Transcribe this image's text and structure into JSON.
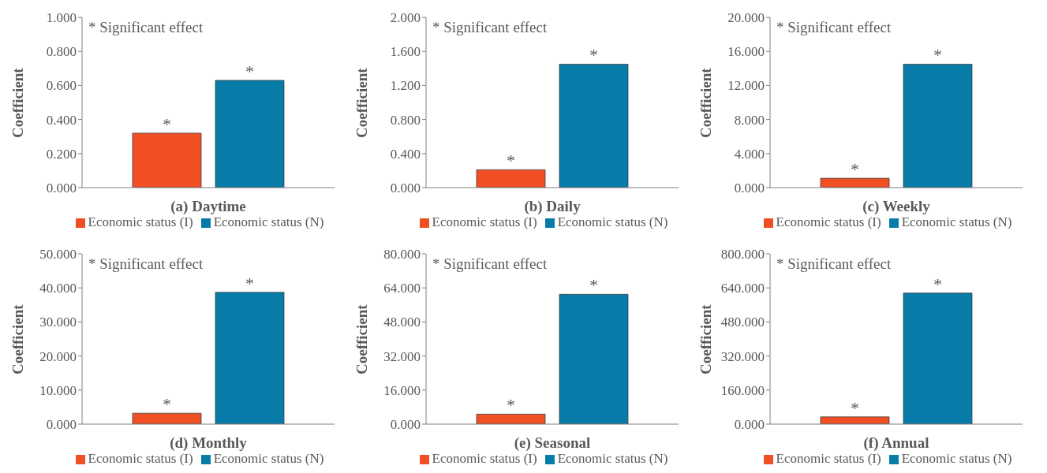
{
  "chart_data": [
    {
      "type": "bar",
      "xlabel": "(a) Daytime",
      "ylabel": "Coefficient",
      "categories": [
        null
      ],
      "legend": "bottom",
      "grid": false,
      "series": [
        {
          "name": "Economic status (I)",
          "color": "#f04e23",
          "values": [
            0.32
          ]
        },
        {
          "name": "Economic status (N)",
          "color": "#077ca8",
          "values": [
            0.63
          ]
        }
      ],
      "ylim": [
        0,
        1
      ],
      "yticks": [
        {
          "value": 0,
          "label": "0.000"
        },
        {
          "value": 0.2,
          "label": "0.200"
        },
        {
          "value": 0.4,
          "label": "0.400"
        },
        {
          "value": 0.6,
          "label": "0.600"
        },
        {
          "value": 0.8,
          "label": "0.800"
        },
        {
          "value": 1,
          "label": "1.000"
        }
      ],
      "annotations": [
        "* Significant effect",
        {
          "text": "*",
          "y": 0.32
        },
        {
          "text": "*",
          "y": 0.63
        }
      ]
    },
    {
      "type": "bar",
      "xlabel": "(b) Daily",
      "ylabel": "Coefficient",
      "categories": [
        null
      ],
      "legend": "bottom",
      "grid": false,
      "series": [
        {
          "name": "Economic status (I)",
          "color": "#f04e23",
          "values": [
            0.21
          ]
        },
        {
          "name": "Economic status (N)",
          "color": "#077ca8",
          "values": [
            1.45
          ]
        }
      ],
      "ylim": [
        0,
        2
      ],
      "yticks": [
        {
          "value": 0,
          "label": "0.000"
        },
        {
          "value": 0.4,
          "label": "0.400"
        },
        {
          "value": 0.8,
          "label": "0.800"
        },
        {
          "value": 1.2,
          "label": "1.200"
        },
        {
          "value": 1.6,
          "label": "1.600"
        },
        {
          "value": 2,
          "label": "2.000"
        }
      ],
      "annotations": [
        "* Significant effect",
        {
          "text": "*",
          "y": 0.21
        },
        {
          "text": "*",
          "y": 1.45
        }
      ]
    },
    {
      "type": "bar",
      "xlabel": "(c) Weekly",
      "ylabel": "Coefficient",
      "categories": [
        null
      ],
      "legend": "bottom",
      "grid": false,
      "series": [
        {
          "name": "Economic status (I)",
          "color": "#f04e23",
          "values": [
            1.1
          ]
        },
        {
          "name": "Economic status (N)",
          "color": "#077ca8",
          "values": [
            14.5
          ]
        }
      ],
      "ylim": [
        0,
        20
      ],
      "yticks": [
        {
          "value": 0,
          "label": "0.000"
        },
        {
          "value": 4,
          "label": "4.000"
        },
        {
          "value": 8,
          "label": "8.000"
        },
        {
          "value": 12,
          "label": "12.000"
        },
        {
          "value": 16,
          "label": "16.000"
        },
        {
          "value": 20,
          "label": "20.000"
        }
      ],
      "annotations": [
        "* Significant effect",
        {
          "text": "*",
          "y": 1.1
        },
        {
          "text": "*",
          "y": 14.5
        }
      ]
    },
    {
      "type": "bar",
      "xlabel": "(d) Monthly",
      "ylabel": "Coefficient",
      "categories": [
        null
      ],
      "legend": "bottom",
      "grid": false,
      "series": [
        {
          "name": "Economic status (I)",
          "color": "#f04e23",
          "values": [
            3.2
          ]
        },
        {
          "name": "Economic status (N)",
          "color": "#077ca8",
          "values": [
            38.7
          ]
        }
      ],
      "ylim": [
        0,
        50
      ],
      "yticks": [
        {
          "value": 0,
          "label": "0.000"
        },
        {
          "value": 10,
          "label": "10.000"
        },
        {
          "value": 20,
          "label": "20.000"
        },
        {
          "value": 30,
          "label": "30.000"
        },
        {
          "value": 40,
          "label": "40.000"
        },
        {
          "value": 50,
          "label": "50.000"
        }
      ],
      "annotations": [
        "* Significant effect",
        {
          "text": "*",
          "y": 3.2
        },
        {
          "text": "*",
          "y": 38.7
        }
      ]
    },
    {
      "type": "bar",
      "xlabel": "(e) Seasonal",
      "ylabel": "Coefficient",
      "categories": [
        null
      ],
      "legend": "bottom",
      "grid": false,
      "series": [
        {
          "name": "Economic status (I)",
          "color": "#f04e23",
          "values": [
            4.7
          ]
        },
        {
          "name": "Economic status (N)",
          "color": "#077ca8",
          "values": [
            61
          ]
        }
      ],
      "ylim": [
        0,
        80
      ],
      "yticks": [
        {
          "value": 0,
          "label": "0.000"
        },
        {
          "value": 16,
          "label": "16.000"
        },
        {
          "value": 32,
          "label": "32.000"
        },
        {
          "value": 48,
          "label": "48.000"
        },
        {
          "value": 64,
          "label": "64.000"
        },
        {
          "value": 80,
          "label": "80.000"
        }
      ],
      "annotations": [
        "* Significant effect",
        {
          "text": "*",
          "y": 4.7
        },
        {
          "text": "*",
          "y": 61
        }
      ]
    },
    {
      "type": "bar",
      "xlabel": "(f) Annual",
      "ylabel": "Coefficient",
      "categories": [
        null
      ],
      "legend": "bottom",
      "grid": false,
      "series": [
        {
          "name": "Economic status (I)",
          "color": "#f04e23",
          "values": [
            34
          ]
        },
        {
          "name": "Economic status (N)",
          "color": "#077ca8",
          "values": [
            616
          ]
        }
      ],
      "ylim": [
        0,
        800
      ],
      "yticks": [
        {
          "value": 0,
          "label": "0.000"
        },
        {
          "value": 160,
          "label": "160.000"
        },
        {
          "value": 320,
          "label": "320.000"
        },
        {
          "value": 480,
          "label": "480.000"
        },
        {
          "value": 640,
          "label": "640.000"
        },
        {
          "value": 800,
          "label": "800.000"
        }
      ],
      "annotations": [
        "* Significant effect",
        {
          "text": "*",
          "y": 34
        },
        {
          "text": "*",
          "y": 616
        }
      ]
    }
  ]
}
